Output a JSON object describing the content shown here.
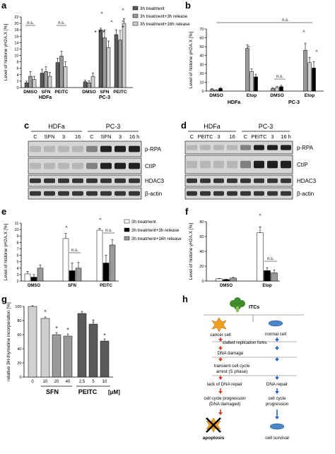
{
  "panel_letters": [
    "a",
    "b",
    "c",
    "d",
    "e",
    "f",
    "g",
    "h"
  ],
  "colors": {
    "black": "#000000",
    "dark_gray": "#5a5a5a",
    "mid_gray": "#9a9a9a",
    "light_gray": "#cfcfcf",
    "white": "#ffffff",
    "blot_bg": "#d6d6d6",
    "flow_arrow_red": "#d23a2a",
    "flow_arrow_blue": "#2a64c8",
    "cancer_cell": "#f0a020",
    "normal_cell": "#4a86c8"
  },
  "chart_data": [
    {
      "panel": "a",
      "type": "bar",
      "ylabel": "Level of histone γH2A.X [%]",
      "ylim": [
        0,
        22
      ],
      "yticks": [
        "0",
        "2",
        "4",
        "6",
        "8",
        "10",
        "12",
        "14",
        "16",
        "18",
        "20",
        "22"
      ],
      "categories": [
        "DMSO",
        "SFN",
        "PEITC",
        "DMSO",
        "SFN",
        "PEITC"
      ],
      "groups": [
        "HDFa",
        "PC-3"
      ],
      "legend": [
        "3h treatment",
        "3h treatment+3h release",
        "3h treatment+16h release"
      ],
      "series": [
        {
          "name": "3h treatment",
          "values": [
            1.5,
            4.5,
            7.8,
            1.8,
            18,
            16.5
          ],
          "errors": [
            0.5,
            1.2,
            1.3,
            0.5,
            0.5,
            1.5
          ]
        },
        {
          "name": "3h treatment+3h release",
          "values": [
            3.5,
            5,
            9.8,
            1.5,
            15.5,
            14.8
          ],
          "errors": [
            1.5,
            1.5,
            1.5,
            0.6,
            2.5,
            3
          ]
        },
        {
          "name": "3h treatment+16h release",
          "values": [
            2.5,
            3.5,
            6.5,
            3.5,
            12.5,
            20
          ],
          "errors": [
            1,
            1.2,
            1.5,
            1,
            2,
            1.5
          ]
        }
      ],
      "annotations": [
        "n.s.",
        "n.s.",
        "^",
        "^",
        "^",
        "^",
        "*",
        "*",
        "*",
        "*"
      ]
    },
    {
      "panel": "b",
      "type": "bar",
      "ylabel": "Level of histone γH2A.X [%]",
      "ylim": [
        0,
        70
      ],
      "yticks": [
        "0",
        "10",
        "20",
        "30",
        "40",
        "50",
        "60",
        "70"
      ],
      "categories": [
        "DMSO",
        "Etop",
        "DMSO",
        "Etop"
      ],
      "groups": [
        "HDFa",
        "PC-3"
      ],
      "series": [
        {
          "values": [
            2,
            48,
            3,
            46
          ],
          "errors": [
            1,
            4,
            1,
            8
          ]
        },
        {
          "values": [
            1,
            22,
            4,
            32
          ],
          "errors": [
            0.5,
            3,
            1,
            6
          ]
        },
        {
          "values": [
            3,
            16,
            5,
            26
          ],
          "errors": [
            1,
            3,
            1.5,
            7
          ]
        }
      ],
      "annotations": [
        "n.s.",
        "^",
        "^",
        "^",
        "n.s."
      ]
    },
    {
      "panel": "e",
      "type": "bar",
      "ylabel": "Level of histone γH2A.X [%]",
      "ylim": [
        2,
        11
      ],
      "yticks": [
        "2",
        "3",
        "4",
        "5",
        "6",
        "7",
        "8",
        "9",
        "10",
        "11"
      ],
      "categories": [
        "DMSO",
        "SFN",
        "PEITC"
      ],
      "legend": [
        "3h treatment",
        "3h treatment+3h release",
        "3h treatment+16h release"
      ],
      "series": [
        {
          "name": "3h treatment",
          "values": [
            3.1,
            8.6,
            9.9
          ],
          "errors": [
            0.4,
            0.8,
            0.3
          ]
        },
        {
          "name": "3h treatment+3h release",
          "values": [
            2.6,
            3.6,
            4.8
          ],
          "errors": [
            0.4,
            1.2,
            1.2
          ]
        },
        {
          "name": "3h treatment+16h release",
          "values": [
            4.0,
            4.0,
            7.6
          ],
          "errors": [
            0.5,
            0.9,
            0.8
          ]
        }
      ],
      "annotations": [
        "^",
        "n.s.",
        "^",
        "n.s."
      ]
    },
    {
      "panel": "f",
      "type": "bar",
      "ylabel": "Level of histone γH2A.X [%]",
      "ylim": [
        0,
        80
      ],
      "yticks": [
        "0",
        "20",
        "40",
        "60",
        "80"
      ],
      "categories": [
        "DMSO",
        "Etop"
      ],
      "series": [
        {
          "values": [
            3,
            65
          ],
          "errors": [
            0.5,
            8
          ]
        },
        {
          "values": [
            2,
            14
          ],
          "errors": [
            0.5,
            4
          ]
        },
        {
          "values": [
            4,
            11
          ],
          "errors": [
            1,
            4
          ]
        }
      ],
      "annotations": [
        "^",
        "n.s."
      ]
    },
    {
      "panel": "g",
      "type": "bar",
      "ylabel": "relative 3H-thymidine incorporation [%]",
      "ylim": [
        0,
        100
      ],
      "yticks": [
        "0",
        "20",
        "40",
        "60",
        "80",
        "100"
      ],
      "categories": [
        "0",
        "10",
        "20",
        "40",
        "2.5",
        "5",
        "10"
      ],
      "group_labels": [
        "SFN",
        "PEITC"
      ],
      "unit": "[μM]",
      "values": [
        100,
        83,
        60,
        58,
        90,
        75,
        51
      ],
      "errors": [
        1,
        2,
        3,
        3,
        3,
        3,
        3
      ],
      "annotations": [
        "^",
        "*",
        "*",
        "*",
        "*"
      ]
    }
  ],
  "blot_c": {
    "groups": [
      "HDFa",
      "PC-3"
    ],
    "lanes": [
      "C",
      "SFN",
      "3",
      "16",
      "C",
      "SFN",
      "3",
      "16 h"
    ],
    "rows": [
      "p-RPA",
      "CtIP",
      "HDAC3",
      "β-actin"
    ]
  },
  "blot_d": {
    "groups": [
      "HDFa",
      "PC-3"
    ],
    "lanes": [
      "C",
      "PEITC",
      "3",
      "16",
      "C",
      "PEITC",
      "3",
      "16 h"
    ],
    "rows": [
      "p-RPA",
      "CtIP",
      "HDAC3",
      "β-actin"
    ]
  },
  "diagram_h": {
    "top": "ITCs",
    "left": [
      "cancer cell",
      "stalled replication forks",
      "DNA damage",
      "transient cell cycle arrest (S phase)",
      "lack of DNA repair",
      "cell cycle progression (DNA damaged)",
      "apoptosis"
    ],
    "right": [
      "normal cell",
      "DNA repair",
      "cell cycle progression",
      "cell survival"
    ]
  }
}
